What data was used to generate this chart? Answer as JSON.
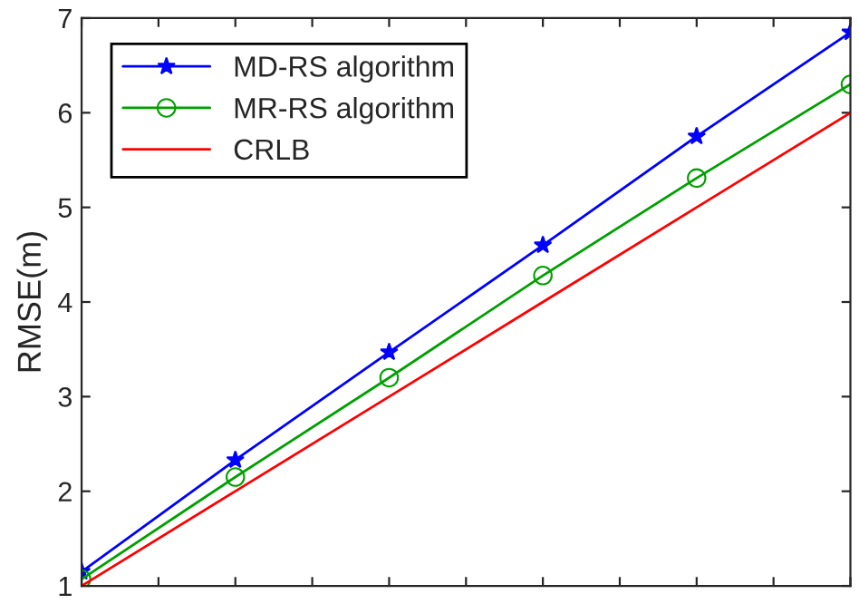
{
  "chart_data": {
    "type": "line",
    "ylabel": "RMSE(m)",
    "categories": [
      null,
      null,
      null,
      null,
      null,
      null
    ],
    "series": [
      {
        "name": "MD-RS algorithm",
        "color": "#0000ff",
        "marker": "star",
        "values": [
          1.15,
          2.33,
          3.47,
          4.6,
          5.75,
          6.85
        ]
      },
      {
        "name": "MR-RS algorithm",
        "color": "#00a000",
        "marker": "circle",
        "values": [
          1.07,
          2.15,
          3.2,
          4.28,
          5.31,
          6.3
        ]
      },
      {
        "name": "CRLB",
        "color": "#ff0000",
        "values": [
          1,
          2,
          3,
          4,
          5,
          6
        ]
      }
    ],
    "ylim": [
      1,
      7
    ],
    "yticks": [
      1,
      2,
      3,
      4,
      5,
      6,
      7
    ],
    "tick_labels": "y",
    "legend": "top left",
    "grid": false
  }
}
